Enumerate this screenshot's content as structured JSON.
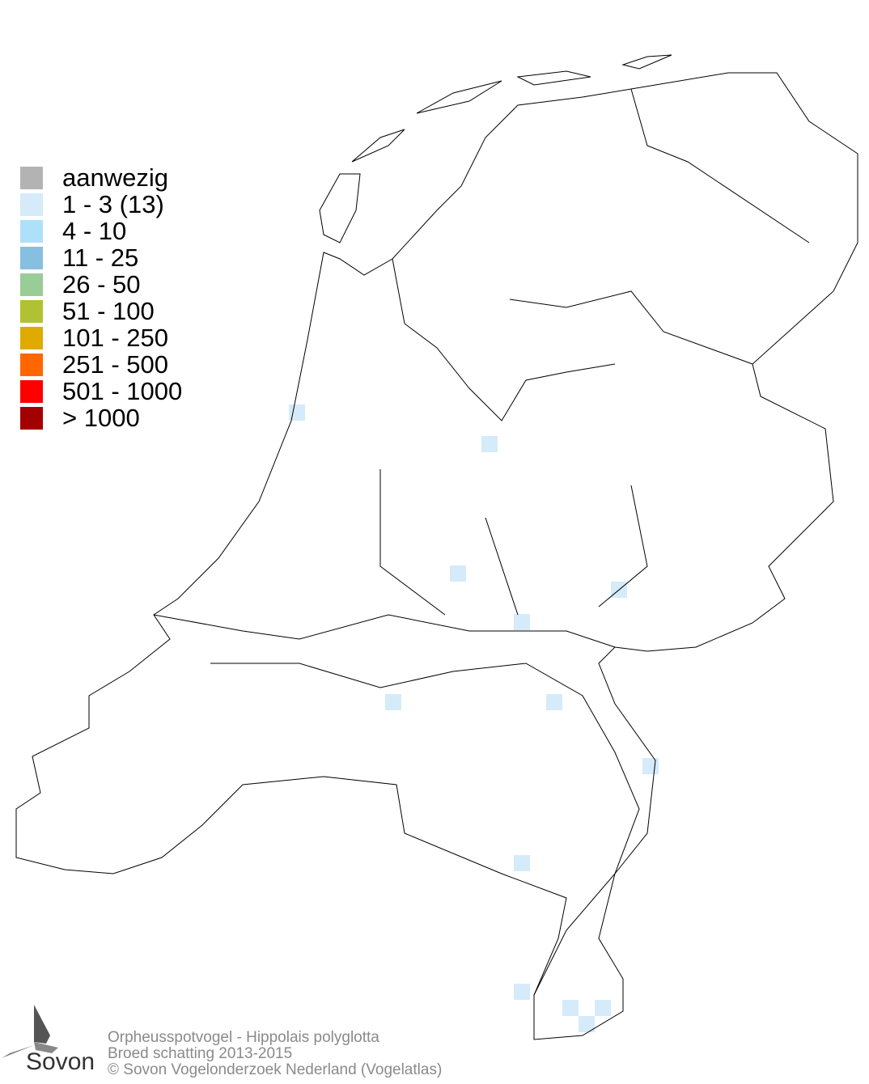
{
  "legend": [
    {
      "label": "aanwezig",
      "color": "#b3b3b3"
    },
    {
      "label": "1 - 3 (13)",
      "color": "#d5ebf9"
    },
    {
      "label": "4 - 10",
      "color": "#aee0f9"
    },
    {
      "label": "11 - 25",
      "color": "#86bfdf"
    },
    {
      "label": "26 - 50",
      "color": "#99cc96"
    },
    {
      "label": "51 - 100",
      "color": "#b0c232"
    },
    {
      "label": "101 - 250",
      "color": "#e0ab00"
    },
    {
      "label": "251 - 500",
      "color": "#ff6600"
    },
    {
      "label": "501 - 1000",
      "color": "#ff0000"
    },
    {
      "label": "> 1000",
      "color": "#a30000"
    }
  ],
  "footer": {
    "line1": "Orpheusspotvogel - Hippolais polyglotta",
    "line2": "Broed schatting 2013-2015",
    "line3": "© Sovon Vogelonderzoek Nederland (Vogelatlas)"
  },
  "logo": {
    "text": "Sovon",
    "icon": "swallow-icon"
  },
  "observations": {
    "category": "1 - 3 (13)",
    "count": 13
  }
}
